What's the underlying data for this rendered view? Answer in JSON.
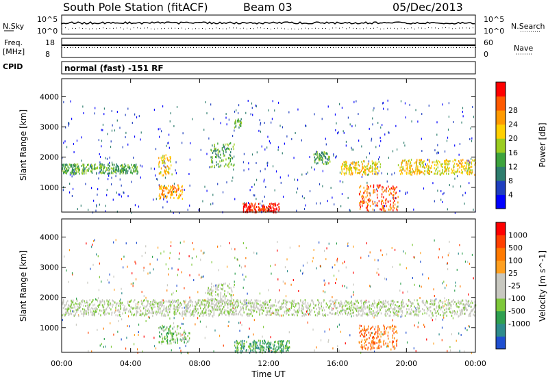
{
  "header": {
    "station": "South Pole Station (fitACF)",
    "beam": "Beam 03",
    "date": "05/Dec/2013"
  },
  "strip": {
    "nsky_label": "N.Sky",
    "nsearch_label": "N.Search",
    "noise_ticks": [
      "10^5",
      "10^0"
    ],
    "freq_label_1": "Freq.",
    "freq_label_2": "[MHz]",
    "freq_ticks": [
      "18",
      "8"
    ],
    "nave_label": "Nave",
    "nave_ticks": [
      "60",
      "0"
    ],
    "cpid_label": "CPID",
    "cpid_value": "normal (fast) -151 RF"
  },
  "chart_data": [
    {
      "type": "heatmap",
      "panel": "power",
      "xlabel": "Time UT",
      "ylabel": "Slant Range [km]",
      "x_ticks": [
        "00:00",
        "04:00",
        "08:00",
        "12:00",
        "16:00",
        "20:00",
        "00:00"
      ],
      "x_hours": [
        0,
        4,
        8,
        12,
        16,
        20,
        24
      ],
      "y_ticks": [
        1000,
        2000,
        3000,
        4000
      ],
      "ylim": [
        180,
        4600
      ],
      "colorbar_label": "Power [dB]",
      "colorbar_ticks": [
        "4",
        "8",
        "12",
        "16",
        "20",
        "24",
        "28"
      ],
      "colorbar_colors": [
        "#0000ff",
        "#1f3fbf",
        "#2e7d6e",
        "#3da33d",
        "#9bcd20",
        "#ffd000",
        "#ff9a00",
        "#ff5a00",
        "#ff0000"
      ],
      "features": [
        {
          "t0": 0.0,
          "t1": 4.4,
          "r0": 1480,
          "r1": 1800,
          "level": 3
        },
        {
          "t0": 5.6,
          "t1": 6.4,
          "r0": 1400,
          "r1": 2100,
          "level": 5
        },
        {
          "t0": 5.6,
          "t1": 7.0,
          "r0": 650,
          "r1": 1100,
          "level": 6
        },
        {
          "t0": 8.6,
          "t1": 10.0,
          "r0": 1700,
          "r1": 2500,
          "level": 3
        },
        {
          "t0": 10.0,
          "t1": 10.4,
          "r0": 3000,
          "r1": 3300,
          "level": 3
        },
        {
          "t0": 10.5,
          "t1": 12.6,
          "r0": 200,
          "r1": 500,
          "level": 8
        },
        {
          "t0": 14.6,
          "t1": 15.6,
          "r0": 1800,
          "r1": 2200,
          "level": 3
        },
        {
          "t0": 16.2,
          "t1": 18.5,
          "r0": 1450,
          "r1": 1900,
          "level": 5
        },
        {
          "t0": 17.2,
          "t1": 19.5,
          "r0": 250,
          "r1": 1100,
          "level": 7
        },
        {
          "t0": 19.5,
          "t1": 24.0,
          "r0": 1450,
          "r1": 1950,
          "level": 5
        }
      ]
    },
    {
      "type": "heatmap",
      "panel": "velocity",
      "xlabel": "Time UT",
      "ylabel": "Slant Range [km]",
      "x_ticks": [
        "00:00",
        "04:00",
        "08:00",
        "12:00",
        "16:00",
        "20:00",
        "00:00"
      ],
      "x_hours": [
        0,
        4,
        8,
        12,
        16,
        20,
        24
      ],
      "y_ticks": [
        1000,
        2000,
        3000,
        4000
      ],
      "ylim": [
        180,
        4600
      ],
      "colorbar_label": "Velocity [m s^-1]",
      "colorbar_ticks": [
        "1000",
        "500",
        "100",
        "25",
        "-25",
        "-100",
        "-500",
        "-1000"
      ],
      "colorbar_colors": [
        "#1f4fd0",
        "#2e8c8c",
        "#2fa050",
        "#7ec83a",
        "#c8c8c0",
        "#c8c8c0",
        "#ffa020",
        "#ff7a00",
        "#ff4000",
        "#ff0000"
      ],
      "features": [
        {
          "t0": 0.0,
          "t1": 24.0,
          "r0": 1420,
          "r1": 1950,
          "level": 4
        },
        {
          "t0": 5.6,
          "t1": 7.4,
          "r0": 500,
          "r1": 1100,
          "level": 3
        },
        {
          "t0": 10.0,
          "t1": 13.2,
          "r0": 200,
          "r1": 600,
          "level": 2
        },
        {
          "t0": 17.2,
          "t1": 19.5,
          "r0": 300,
          "r1": 1100,
          "level": 7
        },
        {
          "t0": 8.4,
          "t1": 10.0,
          "r0": 1800,
          "r1": 2500,
          "level": 4
        }
      ]
    }
  ]
}
